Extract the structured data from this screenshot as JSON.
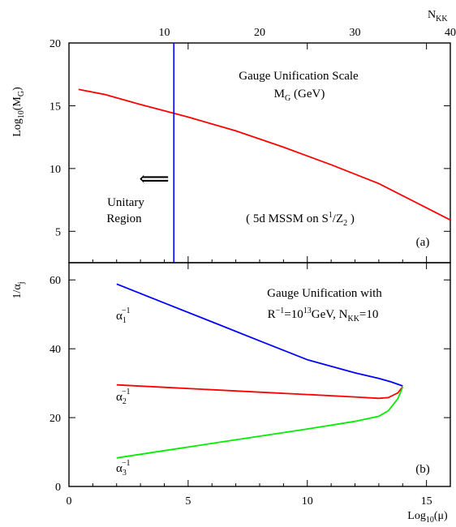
{
  "chart_data": [
    {
      "panel": "a",
      "type": "line",
      "xlabel": "",
      "ylabel": "Log",
      "ylabel_sub": "10",
      "ylabel_tail": "(M",
      "ylabel_sub2": "G",
      "ylabel_end": ")",
      "top_axis_label": "N",
      "top_axis_label_sub": "KK",
      "xlim": [
        0,
        16
      ],
      "ylim": [
        2.5,
        20
      ],
      "top_xlim": [
        0,
        40
      ],
      "x_ticks": [
        0,
        5,
        10,
        15
      ],
      "top_x_ticks": [
        10,
        20,
        30,
        40
      ],
      "y_ticks": [
        5,
        10,
        15,
        20
      ],
      "series": [
        {
          "color": "#ff0000",
          "x": [
            0.4,
            1.5,
            3,
            5,
            7,
            9,
            11,
            13,
            16
          ],
          "y": [
            16.3,
            15.9,
            15.1,
            14.1,
            13.0,
            11.7,
            10.3,
            8.8,
            5.9
          ]
        }
      ],
      "vline": {
        "x": 4.4,
        "color": "#0000ff"
      },
      "annotations": {
        "title_line1": "Gauge Unification Scale",
        "title_line2_main": "M",
        "title_line2_sub": "G",
        "title_line2_tail": " (GeV)",
        "region_line1": "Unitary",
        "region_line2": "Region",
        "arrow_glyph": "⟸",
        "model_prefix": "( 5d MSSM on S",
        "model_sup": "1",
        "model_mid": "/Z",
        "model_sub": "2",
        "model_suffix": " )",
        "panel_tag": "(a)"
      }
    },
    {
      "panel": "b",
      "type": "line",
      "xlabel": "Log",
      "xlabel_sub": "10",
      "xlabel_tail": "(μ)",
      "ylabel": "1/α",
      "ylabel_sub": "j",
      "xlim": [
        0,
        16
      ],
      "ylim": [
        0,
        65
      ],
      "x_ticks": [
        0,
        5,
        10,
        15
      ],
      "y_ticks": [
        0,
        20,
        40,
        60
      ],
      "series": [
        {
          "name": "α1⁻¹",
          "color": "#0000ff",
          "x": [
            2,
            4,
            6,
            8,
            10,
            12,
            13,
            13.5,
            14
          ],
          "y": [
            58.8,
            53.3,
            47.8,
            42.3,
            36.8,
            33.0,
            31.4,
            30.4,
            29.2
          ]
        },
        {
          "name": "α2⁻¹",
          "color": "#ff0000",
          "x": [
            2,
            4,
            6,
            8,
            10,
            12,
            13,
            13.4,
            13.8,
            14
          ],
          "y": [
            29.5,
            28.8,
            28.1,
            27.4,
            26.7,
            26.0,
            25.6,
            25.8,
            27.2,
            29.0
          ]
        },
        {
          "name": "α3⁻¹",
          "color": "#00ee00",
          "x": [
            2,
            4,
            6,
            8,
            10,
            12,
            13,
            13.4,
            13.8,
            14
          ],
          "y": [
            8.3,
            10.4,
            12.5,
            14.6,
            16.7,
            18.9,
            20.4,
            22.0,
            25.5,
            28.9
          ]
        }
      ],
      "annotations": {
        "title_line1": "Gauge Unification with",
        "title_line2_a": "R",
        "title_line2_sup1": "−1",
        "title_line2_b": "=10",
        "title_line2_sup2": "13",
        "title_line2_c": "GeV, N",
        "title_line2_sub": "KK",
        "title_line2_d": "=10",
        "alpha_main": "α",
        "alpha1_sub": "1",
        "alpha2_sub": "2",
        "alpha3_sub": "3",
        "alpha_sup": "−1",
        "panel_tag": "(b)"
      }
    }
  ]
}
